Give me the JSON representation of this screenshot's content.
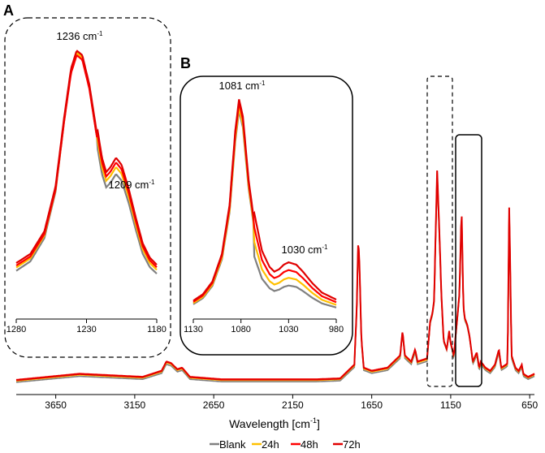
{
  "chart_data": [
    {
      "id": "main",
      "type": "line",
      "xlabel": "Wavelength [cm",
      "xlabel_sup": "-1",
      "xlabel_end": "]",
      "x_reversed": true,
      "xlim": [
        3900,
        620
      ],
      "ylim": [
        0,
        1.0
      ],
      "x_ticks": [
        3650,
        3150,
        2650,
        2150,
        1650,
        1150,
        650
      ],
      "series_names": [
        "Blank",
        "24h",
        "48h",
        "72h"
      ],
      "profile": [
        [
          3900,
          0.02
        ],
        [
          3700,
          0.03
        ],
        [
          3500,
          0.04
        ],
        [
          3300,
          0.035
        ],
        [
          3100,
          0.03
        ],
        [
          2980,
          0.05
        ],
        [
          2950,
          0.08
        ],
        [
          2920,
          0.075
        ],
        [
          2880,
          0.055
        ],
        [
          2850,
          0.06
        ],
        [
          2800,
          0.03
        ],
        [
          2600,
          0.022
        ],
        [
          2400,
          0.022
        ],
        [
          2200,
          0.022
        ],
        [
          2000,
          0.022
        ],
        [
          1850,
          0.025
        ],
        [
          1760,
          0.07
        ],
        [
          1745,
          0.25
        ],
        [
          1735,
          0.48
        ],
        [
          1728,
          0.4
        ],
        [
          1715,
          0.15
        ],
        [
          1700,
          0.06
        ],
        [
          1650,
          0.05
        ],
        [
          1600,
          0.055
        ],
        [
          1550,
          0.06
        ],
        [
          1470,
          0.1
        ],
        [
          1455,
          0.18
        ],
        [
          1440,
          0.1
        ],
        [
          1400,
          0.08
        ],
        [
          1375,
          0.12
        ],
        [
          1360,
          0.08
        ],
        [
          1300,
          0.09
        ],
        [
          1280,
          0.21
        ],
        [
          1265,
          0.24
        ],
        [
          1255,
          0.28
        ],
        [
          1245,
          0.5
        ],
        [
          1236,
          0.7
        ],
        [
          1225,
          0.55
        ],
        [
          1209,
          0.3
        ],
        [
          1195,
          0.15
        ],
        [
          1175,
          0.12
        ],
        [
          1160,
          0.18
        ],
        [
          1150,
          0.14
        ],
        [
          1130,
          0.1
        ],
        [
          1095,
          0.3
        ],
        [
          1081,
          0.58
        ],
        [
          1070,
          0.26
        ],
        [
          1060,
          0.22
        ],
        [
          1045,
          0.2
        ],
        [
          1030,
          0.16
        ],
        [
          1010,
          0.08
        ],
        [
          985,
          0.11
        ],
        [
          970,
          0.06
        ],
        [
          960,
          0.08
        ],
        [
          930,
          0.06
        ],
        [
          900,
          0.05
        ],
        [
          870,
          0.07
        ],
        [
          845,
          0.12
        ],
        [
          830,
          0.06
        ],
        [
          800,
          0.07
        ],
        [
          790,
          0.075
        ],
        [
          780,
          0.58
        ],
        [
          772,
          0.35
        ],
        [
          765,
          0.1
        ],
        [
          740,
          0.06
        ],
        [
          720,
          0.05
        ],
        [
          700,
          0.07
        ],
        [
          690,
          0.04
        ],
        [
          660,
          0.03
        ],
        [
          620,
          0.04
        ]
      ],
      "highlights": [
        {
          "label": "A",
          "x_range": [
            1270,
            1185
          ],
          "style": "dashed"
        },
        {
          "label": "B",
          "x_range": [
            1110,
            1000
          ],
          "style": "solid"
        }
      ]
    },
    {
      "id": "inset_a",
      "type": "line",
      "panel_label": "A",
      "xlim": [
        1280,
        1180
      ],
      "x_ticks": [
        1280,
        1230,
        1180
      ],
      "annotations": [
        {
          "text": "1236 cm",
          "sup": "-1",
          "x": 1236
        },
        {
          "text": "1209 cm",
          "sup": "-1",
          "x": 1209
        }
      ],
      "peak_curve": [
        [
          1280,
          0.06
        ],
        [
          1270,
          0.1
        ],
        [
          1260,
          0.2
        ],
        [
          1252,
          0.4
        ],
        [
          1246,
          0.7
        ],
        [
          1241,
          0.92
        ],
        [
          1237,
          1.0
        ],
        [
          1233,
          0.98
        ],
        [
          1228,
          0.85
        ],
        [
          1223,
          0.65
        ],
        [
          1219,
          0.5
        ],
        [
          1216,
          0.44
        ],
        [
          1213,
          0.46
        ],
        [
          1209,
          0.5
        ],
        [
          1205,
          0.47
        ],
        [
          1200,
          0.37
        ],
        [
          1195,
          0.25
        ],
        [
          1190,
          0.14
        ],
        [
          1185,
          0.08
        ],
        [
          1180,
          0.05
        ]
      ],
      "series": [
        {
          "name": "Blank",
          "peak_scale": 1.0,
          "shoulder_scale": 0.95,
          "offset": -0.02
        },
        {
          "name": "24h",
          "peak_scale": 0.98,
          "shoulder_scale": 0.98,
          "offset": -0.005
        },
        {
          "name": "48h",
          "peak_scale": 0.96,
          "shoulder_scale": 1.0,
          "offset": 0.005
        },
        {
          "name": "72h",
          "peak_scale": 0.97,
          "shoulder_scale": 1.02,
          "offset": 0.015
        }
      ]
    },
    {
      "id": "inset_b",
      "type": "line",
      "panel_label": "B",
      "xlim": [
        1130,
        980
      ],
      "x_ticks": [
        1130,
        1080,
        1030,
        980
      ],
      "annotations": [
        {
          "text": "1081 cm",
          "sup": "-1",
          "x": 1081
        },
        {
          "text": "1030 cm",
          "sup": "-1",
          "x": 1030
        }
      ],
      "peak_curve": [
        [
          1130,
          0.05
        ],
        [
          1120,
          0.08
        ],
        [
          1110,
          0.14
        ],
        [
          1100,
          0.27
        ],
        [
          1092,
          0.5
        ],
        [
          1086,
          0.85
        ],
        [
          1082,
          1.0
        ],
        [
          1078,
          0.92
        ],
        [
          1072,
          0.62
        ],
        [
          1066,
          0.42
        ],
        [
          1058,
          0.26
        ],
        [
          1050,
          0.19
        ],
        [
          1045,
          0.17
        ],
        [
          1040,
          0.18
        ],
        [
          1035,
          0.2
        ],
        [
          1030,
          0.21
        ],
        [
          1022,
          0.2
        ],
        [
          1015,
          0.17
        ],
        [
          1005,
          0.12
        ],
        [
          995,
          0.08
        ],
        [
          980,
          0.05
        ]
      ],
      "series": [
        {
          "name": "Blank",
          "peak_scale": 0.96,
          "shoulder_scale": 0.65,
          "offset": -0.005
        },
        {
          "name": "24h",
          "peak_scale": 0.97,
          "shoulder_scale": 0.8,
          "offset": 0.0
        },
        {
          "name": "48h",
          "peak_scale": 0.99,
          "shoulder_scale": 0.95,
          "offset": 0.005
        },
        {
          "name": "72h",
          "peak_scale": 1.0,
          "shoulder_scale": 1.1,
          "offset": 0.01
        }
      ]
    }
  ],
  "legend": [
    {
      "name": "Blank",
      "color": "#808080"
    },
    {
      "name": "24h",
      "color": "#FFC000"
    },
    {
      "name": "48h",
      "color": "#FF0000"
    },
    {
      "name": "72h",
      "color": "#E00000"
    }
  ],
  "colors": {
    "Blank": "#808080",
    "24h": "#FFC000",
    "48h": "#FF0000",
    "72h": "#E00000"
  }
}
